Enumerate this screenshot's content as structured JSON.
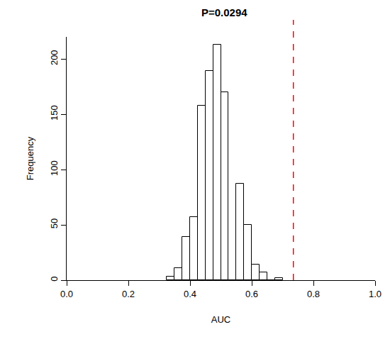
{
  "chart_data": {
    "type": "histogram",
    "title": "P=0.0294",
    "x_label": "AUC",
    "y_label": "Frequency",
    "bins": [
      0.325,
      0.35,
      0.375,
      0.4,
      0.425,
      0.45,
      0.475,
      0.5,
      0.525,
      0.55,
      0.575,
      0.6,
      0.625,
      0.65,
      0.675,
      0.7
    ],
    "counts": [
      3,
      11,
      39,
      57,
      158,
      189,
      213,
      170,
      0,
      87,
      50,
      14,
      7,
      0,
      2
    ],
    "color": "#ffffff",
    "reference_line": {
      "x": 0.735,
      "color": "#ff0000",
      "line_style": "dash"
    },
    "xlim": [
      0,
      1
    ],
    "xticks": [
      {
        "value": 0,
        "label": "0.0"
      },
      {
        "value": 0.2,
        "label": "0.2"
      },
      {
        "value": 0.4,
        "label": "0.4"
      },
      {
        "value": 0.6,
        "label": "0.6"
      },
      {
        "value": 0.8,
        "label": "0.8"
      },
      {
        "value": 1,
        "label": "1.0"
      }
    ],
    "ylim": [
      0,
      220
    ],
    "yticks": [
      0,
      50,
      100,
      150,
      200
    ],
    "grid": false
  }
}
